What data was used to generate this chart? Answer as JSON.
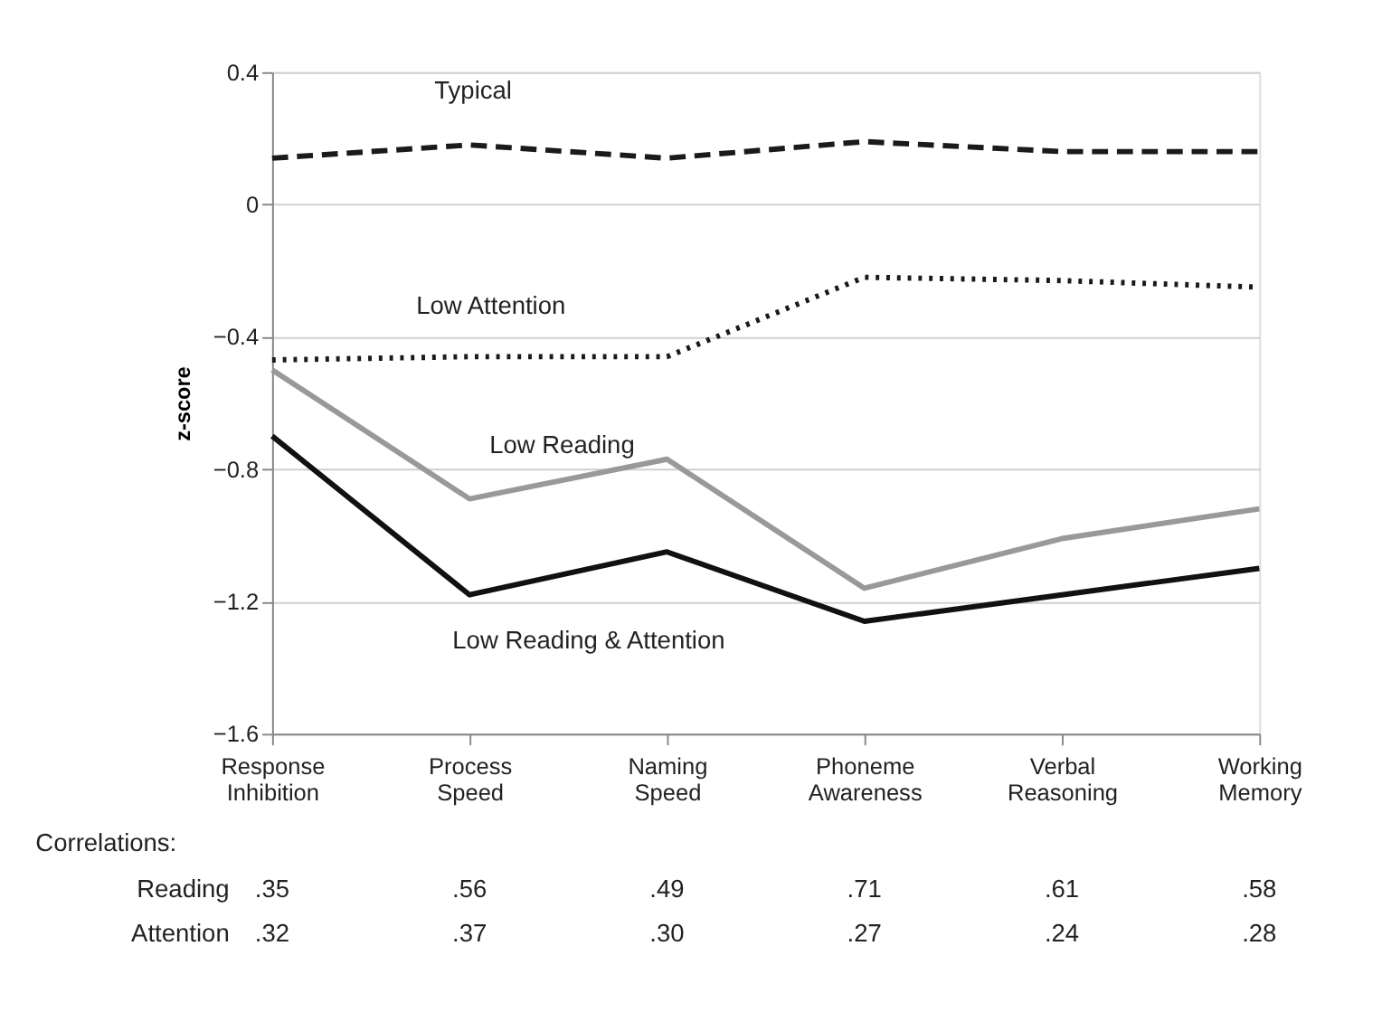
{
  "chart_data": {
    "type": "line",
    "ylabel": "z-score",
    "categories": [
      "Response Inhibition",
      "Process Speed",
      "Naming Speed",
      "Phoneme Awareness",
      "Verbal Reasoning",
      "Working Memory"
    ],
    "series": [
      {
        "name": "Typical",
        "color": "#1a1a1a",
        "line_style": "dashed",
        "values": [
          0.14,
          0.18,
          0.14,
          0.19,
          0.16,
          0.16
        ]
      },
      {
        "name": "Low Attention",
        "color": "#1a1a1a",
        "line_style": "dotted",
        "values": [
          -0.47,
          -0.46,
          -0.46,
          -0.22,
          -0.23,
          -0.25
        ]
      },
      {
        "name": "Low Reading",
        "color": "#999999",
        "line_style": "solid",
        "values": [
          -0.5,
          -0.89,
          -0.77,
          -1.16,
          -1.01,
          -0.92
        ]
      },
      {
        "name": "Low Reading & Attention",
        "color": "#111111",
        "line_style": "solid",
        "values": [
          -0.7,
          -1.18,
          -1.05,
          -1.26,
          -1.18,
          -1.1
        ]
      }
    ],
    "ylim": [
      -1.6,
      0.4
    ],
    "yticks": [
      -1.6,
      -1.2,
      -0.8,
      -0.4,
      0,
      0.4
    ],
    "grid": "y",
    "legend": false,
    "marker": "none",
    "annotations": [
      "Correlations:",
      "Reading",
      ".35",
      ".56",
      ".49",
      ".71",
      ".61",
      ".58",
      "Attention",
      ".32",
      ".37",
      ".30",
      ".27",
      ".24",
      ".28"
    ]
  }
}
